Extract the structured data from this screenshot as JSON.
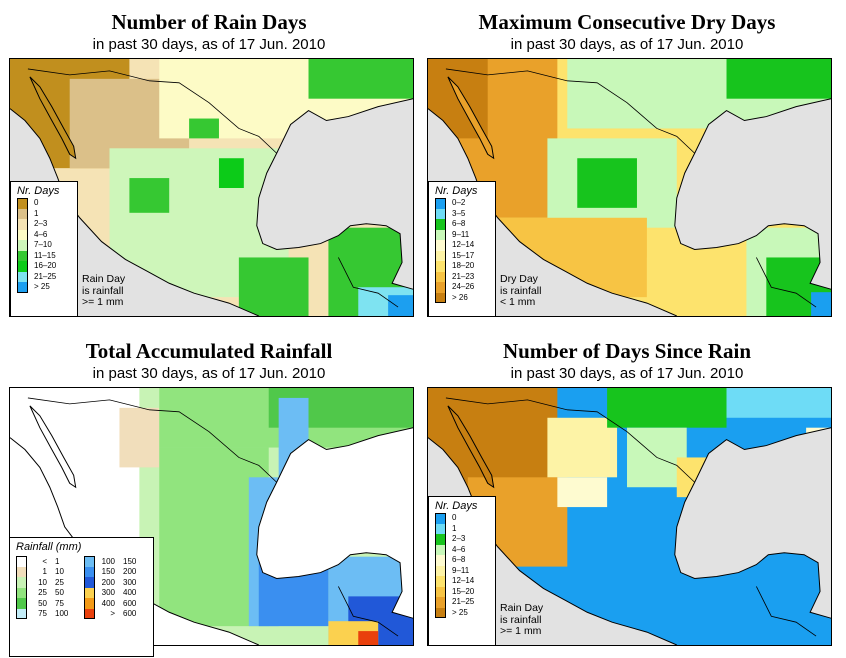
{
  "panels": [
    {
      "title": "Number of Rain Days",
      "subtitle": "in past 30 days, as of  17 Jun. 2010",
      "legend_title": "Nr. Days",
      "legend": [
        {
          "label": "0",
          "color": "#c18f1e"
        },
        {
          "label": "1",
          "color": "#dbc089"
        },
        {
          "label": "2–3",
          "color": "#f5e3b5"
        },
        {
          "label": "4–6",
          "color": "#fdfbc6"
        },
        {
          "label": "7–10",
          "color": "#cef6ba"
        },
        {
          "label": "11–15",
          "color": "#36c832"
        },
        {
          "label": "16–20",
          "color": "#0ccb18"
        },
        {
          "label": "21–25",
          "color": "#7ee3f1"
        },
        {
          "label": "> 25",
          "color": "#1c9ff0"
        }
      ],
      "note": [
        "Rain Day",
        "is rainfall",
        ">= 1 mm"
      ]
    },
    {
      "title": "Maximum Consecutive Dry Days",
      "subtitle": "in past 30 days, as of  17 Jun. 2010",
      "legend_title": "Nr. Days",
      "legend": [
        {
          "label": "0–2",
          "color": "#1a9ff0"
        },
        {
          "label": "3–5",
          "color": "#6edcf6"
        },
        {
          "label": "6–8",
          "color": "#17c41d"
        },
        {
          "label": "9–11",
          "color": "#c8f8b9"
        },
        {
          "label": "12–14",
          "color": "#fefbd0"
        },
        {
          "label": "15–17",
          "color": "#fdf3a6"
        },
        {
          "label": "18–20",
          "color": "#fde36d"
        },
        {
          "label": "21–23",
          "color": "#f7c444"
        },
        {
          "label": "24–26",
          "color": "#e9a12a"
        },
        {
          "label": "> 26",
          "color": "#c77f11"
        }
      ],
      "note": [
        "Dry Day",
        "is rainfall",
        "< 1 mm"
      ]
    },
    {
      "title": "Total Accumulated Rainfall",
      "subtitle": "in past 30 days, as of  17 Jun. 2010",
      "legend_title": "Rainfall (mm)",
      "legend_left": [
        {
          "lo": "<",
          "hi": "1",
          "color": "#ffffff"
        },
        {
          "lo": "1",
          "hi": "10",
          "color": "#f1debb"
        },
        {
          "lo": "10",
          "hi": "25",
          "color": "#c8f3b5"
        },
        {
          "lo": "25",
          "hi": "50",
          "color": "#91e47e"
        },
        {
          "lo": "50",
          "hi": "75",
          "color": "#50c84a"
        },
        {
          "lo": "75",
          "hi": "100",
          "color": "#c4eef9"
        }
      ],
      "legend_right": [
        {
          "lo": "100",
          "hi": "150",
          "color": "#6cbdf4"
        },
        {
          "lo": "150",
          "hi": "200",
          "color": "#3a8ff0"
        },
        {
          "lo": "200",
          "hi": "300",
          "color": "#2158d8"
        },
        {
          "lo": "300",
          "hi": "400",
          "color": "#fbd14f"
        },
        {
          "lo": "400",
          "hi": "600",
          "color": "#f39a16"
        },
        {
          "lo": ">",
          "hi": "600",
          "color": "#e9400c"
        }
      ]
    },
    {
      "title": "Number of Days Since Rain",
      "subtitle": "in past 30 days, as of  17 Jun. 2010",
      "legend_title": "Nr. Days",
      "legend": [
        {
          "label": "0",
          "color": "#1a9ff0"
        },
        {
          "label": "1",
          "color": "#6edcf6"
        },
        {
          "label": "2–3",
          "color": "#17c41d"
        },
        {
          "label": "4–6",
          "color": "#c8f8b9"
        },
        {
          "label": "6–8",
          "color": "#fefbd0"
        },
        {
          "label": "9–11",
          "color": "#fdf3a6"
        },
        {
          "label": "12–14",
          "color": "#fde36d"
        },
        {
          "label": "15–20",
          "color": "#f7c444"
        },
        {
          "label": "21–25",
          "color": "#e9a12a"
        },
        {
          "label": "> 25",
          "color": "#c77f11"
        }
      ],
      "note": [
        "Rain Day",
        "is rainfall",
        ">= 1 mm"
      ]
    }
  ]
}
